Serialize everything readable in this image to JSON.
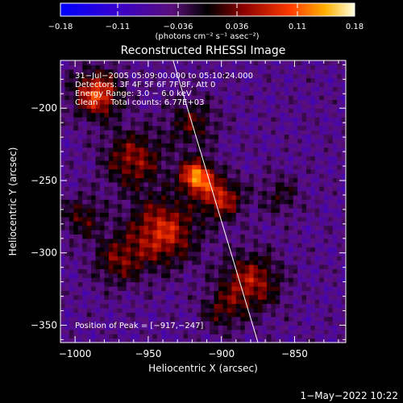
{
  "chart_data": {
    "type": "heatmap",
    "title": "Reconstructed RHESSI Image",
    "xlabel": "Heliocentric X (arcsec)",
    "ylabel": "Heliocentric Y (arcsec)",
    "xlim": [
      -1010,
      -815
    ],
    "ylim": [
      -362,
      -167
    ],
    "x_ticks": [
      -1000,
      -950,
      -900,
      -850
    ],
    "x_tick_labels": [
      "−1000",
      "−950",
      "−900",
      "−850"
    ],
    "y_ticks": [
      -200,
      -250,
      -300,
      -350
    ],
    "y_tick_labels": [
      "−200",
      "−250",
      "−300",
      "−350"
    ],
    "colorbar": {
      "min": -0.18,
      "max": 0.18,
      "ticks": [
        -0.18,
        -0.11,
        -0.036,
        0.036,
        0.11,
        0.18
      ],
      "tick_labels": [
        "−0.18",
        "−0.11",
        "−0.036",
        "0.036",
        "0.11",
        "0.18"
      ],
      "units_label": "(photons cm⁻² s⁻¹ asec⁻²)"
    },
    "annotations": [
      "31−Jul−2005 05:09:00.000 to 05:10:24.000",
      "Detectors: 3F 4F 5F 6F 7F 8F, Att 0",
      "Energy Range: 3.0 − 6.0 keV",
      "Clean     Total counts: 6.77E+03"
    ],
    "peak_label": "Position of Peak = [−917,−247]",
    "peak": [
      -917,
      -247
    ],
    "limb_line": [
      [
        -933,
        -167
      ],
      [
        -875,
        -362
      ]
    ],
    "sources": [
      {
        "x": -917,
        "y": -247,
        "amp": 0.18,
        "sigma": 8
      },
      {
        "x": -985,
        "y": -190,
        "amp": 0.15,
        "sigma": 11
      },
      {
        "x": -940,
        "y": -285,
        "amp": 0.13,
        "sigma": 16
      },
      {
        "x": -900,
        "y": -262,
        "amp": 0.12,
        "sigma": 10
      },
      {
        "x": -880,
        "y": -320,
        "amp": 0.11,
        "sigma": 14
      },
      {
        "x": -960,
        "y": -235,
        "amp": 0.1,
        "sigma": 14
      },
      {
        "x": -970,
        "y": -305,
        "amp": 0.08,
        "sigma": 12
      },
      {
        "x": -995,
        "y": -275,
        "amp": 0.07,
        "sigma": 10
      },
      {
        "x": -920,
        "y": -210,
        "amp": 0.07,
        "sigma": 12
      },
      {
        "x": -900,
        "y": -340,
        "amp": 0.06,
        "sigma": 10
      },
      {
        "x": -860,
        "y": -260,
        "amp": 0.05,
        "sigma": 10
      }
    ]
  },
  "footer": {
    "date": "1−May−2022 10:22"
  }
}
